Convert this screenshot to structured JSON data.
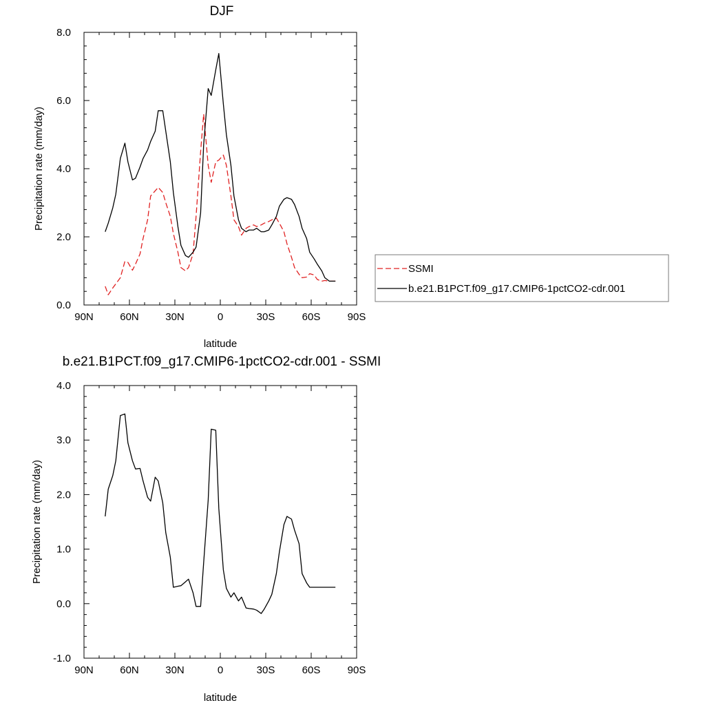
{
  "chart_data": [
    {
      "type": "line",
      "title": "DJF",
      "xlabel": "latitude",
      "ylabel": "Precipitation rate (mm/day)",
      "xlim": [
        90,
        -90
      ],
      "ylim": [
        0,
        8
      ],
      "xticks": [
        90,
        60,
        30,
        0,
        -30,
        -60,
        -90
      ],
      "xtick_labels": [
        "90N",
        "60N",
        "30N",
        "0",
        "30S",
        "60S",
        "90S"
      ],
      "yticks": [
        0,
        2,
        4,
        6,
        8
      ],
      "ytick_labels": [
        "0.0",
        "2.0",
        "4.0",
        "6.0",
        "8.0"
      ],
      "legend_position": "right",
      "series": [
        {
          "name": "SSMI",
          "color": "#e02020",
          "style": "dashed",
          "x": [
            76,
            74,
            71,
            69,
            66,
            63,
            61,
            58,
            56,
            53,
            51,
            48,
            46,
            43,
            41,
            38,
            36,
            33,
            31,
            28,
            26,
            23,
            21,
            18,
            16,
            13,
            11,
            8,
            6,
            3,
            1,
            -2,
            -4,
            -7,
            -9,
            -12,
            -14,
            -17,
            -19,
            -22,
            -24,
            -27,
            -29,
            -32,
            -34,
            -37,
            -39,
            -42,
            -44,
            -47,
            -49,
            -52,
            -54,
            -57,
            -59,
            -62,
            -64,
            -67,
            -69,
            -72,
            -74,
            -76
          ],
          "y": [
            0.55,
            0.3,
            0.5,
            0.62,
            0.8,
            1.28,
            1.25,
            1.02,
            1.2,
            1.5,
            1.95,
            2.5,
            3.2,
            3.35,
            3.45,
            3.3,
            3.0,
            2.6,
            2.1,
            1.55,
            1.1,
            1.0,
            1.1,
            1.5,
            2.6,
            4.5,
            5.6,
            4.1,
            3.6,
            4.2,
            4.25,
            4.4,
            4.1,
            3.2,
            2.5,
            2.3,
            2.05,
            2.25,
            2.3,
            2.35,
            2.3,
            2.35,
            2.4,
            2.45,
            2.5,
            2.55,
            2.4,
            2.15,
            1.8,
            1.4,
            1.1,
            0.9,
            0.8,
            0.82,
            0.92,
            0.88,
            0.75,
            0.7,
            0.72,
            0.7,
            0.7,
            0.7
          ]
        },
        {
          "name": "b.e21.B1PCT.f09_g17.CMIP6-1pctCO2-cdr.001",
          "color": "#000000",
          "style": "solid",
          "x": [
            76,
            74,
            71,
            69,
            66,
            63,
            61,
            58,
            56,
            53,
            51,
            48,
            46,
            43,
            41,
            38,
            36,
            33,
            31,
            28,
            26,
            23,
            21,
            18,
            16,
            13,
            11,
            8,
            6,
            3,
            1,
            -2,
            -4,
            -7,
            -9,
            -12,
            -14,
            -17,
            -19,
            -22,
            -24,
            -27,
            -29,
            -32,
            -34,
            -37,
            -39,
            -42,
            -44,
            -47,
            -49,
            -52,
            -54,
            -57,
            -59,
            -62,
            -64,
            -67,
            -69,
            -72,
            -74,
            -76
          ],
          "y": [
            2.15,
            2.4,
            2.85,
            3.25,
            4.3,
            4.75,
            4.2,
            3.67,
            3.72,
            4.05,
            4.3,
            4.55,
            4.8,
            5.1,
            5.7,
            5.7,
            5.1,
            4.2,
            3.3,
            2.3,
            1.75,
            1.45,
            1.4,
            1.55,
            1.7,
            2.7,
            4.7,
            6.35,
            6.15,
            6.9,
            7.38,
            5.9,
            5.0,
            4.1,
            3.2,
            2.5,
            2.25,
            2.15,
            2.2,
            2.2,
            2.25,
            2.15,
            2.15,
            2.2,
            2.35,
            2.6,
            2.9,
            3.1,
            3.15,
            3.1,
            2.95,
            2.6,
            2.25,
            1.95,
            1.55,
            1.35,
            1.2,
            1.0,
            0.8,
            0.7,
            0.7,
            0.7
          ]
        }
      ]
    },
    {
      "type": "line",
      "title": "b.e21.B1PCT.f09_g17.CMIP6-1pctCO2-cdr.001 - SSMI",
      "xlabel": "latitude",
      "ylabel": "Precipitation rate (mm/day)",
      "xlim": [
        90,
        -90
      ],
      "ylim": [
        -1,
        4
      ],
      "xticks": [
        90,
        60,
        30,
        0,
        -30,
        -60,
        -90
      ],
      "xtick_labels": [
        "90N",
        "60N",
        "30N",
        "0",
        "30S",
        "60S",
        "90S"
      ],
      "yticks": [
        -1,
        0,
        1,
        2,
        3,
        4
      ],
      "ytick_labels": [
        "-1.0",
        "0.0",
        "1.0",
        "2.0",
        "3.0",
        "4.0"
      ],
      "series": [
        {
          "color": "#000000",
          "style": "solid",
          "x": [
            76,
            74,
            71,
            69,
            66,
            63,
            61,
            58,
            56,
            53,
            51,
            48,
            46,
            43,
            41,
            38,
            36,
            33,
            31,
            28,
            26,
            23,
            21,
            18,
            16,
            13,
            11,
            8,
            6,
            3,
            1,
            -2,
            -4,
            -7,
            -9,
            -12,
            -14,
            -17,
            -19,
            -22,
            -24,
            -27,
            -29,
            -32,
            -34,
            -37,
            -39,
            -42,
            -44,
            -47,
            -49,
            -52,
            -54,
            -57,
            -59,
            -62,
            -64,
            -67,
            -69,
            -72,
            -74,
            -76
          ],
          "y": [
            1.6,
            2.1,
            2.35,
            2.62,
            3.45,
            3.48,
            2.95,
            2.62,
            2.47,
            2.48,
            2.25,
            1.95,
            1.88,
            2.32,
            2.25,
            1.85,
            1.3,
            0.85,
            0.3,
            0.32,
            0.33,
            0.4,
            0.45,
            0.2,
            -0.05,
            -0.05,
            0.75,
            1.9,
            3.2,
            3.18,
            1.75,
            0.62,
            0.28,
            0.12,
            0.2,
            0.05,
            0.12,
            -0.08,
            -0.09,
            -0.1,
            -0.12,
            -0.18,
            -0.1,
            0.05,
            0.17,
            0.55,
            0.95,
            1.45,
            1.6,
            1.55,
            1.35,
            1.1,
            0.55,
            0.38,
            0.3,
            0.3,
            0.3,
            0.3,
            0.3,
            0.3,
            0.3,
            0.3
          ]
        }
      ]
    }
  ]
}
